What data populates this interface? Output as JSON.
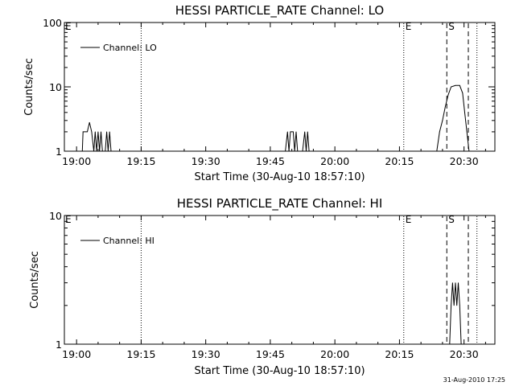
{
  "footer": {
    "timestamp": "31-Aug-2010 17:25"
  },
  "chart_data": [
    {
      "type": "line",
      "title": "HESSI PARTICLE_RATE Channel: LO",
      "xlabel": "Start Time (30-Aug-10 18:57:10)",
      "ylabel": "Counts/sec",
      "yscale": "log",
      "ylim": [
        1,
        100
      ],
      "xlim": [
        "18:57:10",
        "20:37:10"
      ],
      "x_tick_labels": [
        "19:00",
        "19:15",
        "19:30",
        "19:45",
        "20:00",
        "20:15",
        "20:30"
      ],
      "y_tick_labels": [
        "1",
        "10",
        "100"
      ],
      "legend": {
        "position": "top-left",
        "entries": [
          "Channel: LO"
        ]
      },
      "markers": [
        {
          "label": "",
          "time": "19:15",
          "style": "dotted"
        },
        {
          "label": "E",
          "time": "20:16",
          "style": "dotted"
        },
        {
          "label": "S",
          "time": "20:26",
          "style": "dashed"
        },
        {
          "label": "",
          "time": "20:31",
          "style": "dashed"
        },
        {
          "label": "",
          "time": "20:33",
          "style": "dotted"
        }
      ],
      "edge_marker": "E",
      "series": [
        {
          "name": "Channel: LO",
          "points": [
            [
              "19:01:20",
              1
            ],
            [
              "19:01:30",
              2
            ],
            [
              "19:02:30",
              2
            ],
            [
              "19:03:00",
              2.8
            ],
            [
              "19:03:30",
              2
            ],
            [
              "19:04:00",
              1
            ],
            [
              "19:04:20",
              2
            ],
            [
              "19:04:40",
              1
            ],
            [
              "19:05:00",
              2
            ],
            [
              "19:05:20",
              1
            ],
            [
              "19:05:40",
              2
            ],
            [
              "19:06:00",
              1
            ],
            [
              "19:06:40",
              1
            ],
            [
              "19:07:00",
              2
            ],
            [
              "19:07:20",
              1
            ],
            [
              "19:07:40",
              2
            ],
            [
              "19:08:00",
              1
            ],
            [
              "19:48:30",
              1
            ],
            [
              "19:49:00",
              2
            ],
            [
              "19:49:20",
              1
            ],
            [
              "19:49:40",
              2
            ],
            [
              "19:50:20",
              2
            ],
            [
              "19:50:40",
              1
            ],
            [
              "19:51:00",
              2
            ],
            [
              "19:51:20",
              1
            ],
            [
              "19:52:30",
              1
            ],
            [
              "19:53:00",
              2
            ],
            [
              "19:53:20",
              1
            ],
            [
              "19:53:40",
              2
            ],
            [
              "19:54:00",
              1
            ],
            [
              "20:23:40",
              1
            ],
            [
              "20:24:20",
              2
            ],
            [
              "20:25:00",
              3
            ],
            [
              "20:25:40",
              5
            ],
            [
              "20:26:20",
              7.5
            ],
            [
              "20:27:00",
              10
            ],
            [
              "20:28:00",
              10.5
            ],
            [
              "20:29:00",
              10.5
            ],
            [
              "20:29:40",
              8
            ],
            [
              "20:30:10",
              4
            ],
            [
              "20:30:40",
              2
            ],
            [
              "20:31:10",
              1
            ]
          ]
        }
      ]
    },
    {
      "type": "line",
      "title": "HESSI PARTICLE_RATE Channel: HI",
      "xlabel": "Start Time (30-Aug-10 18:57:10)",
      "ylabel": "Counts/sec",
      "yscale": "log",
      "ylim": [
        1,
        10
      ],
      "xlim": [
        "18:57:10",
        "20:37:10"
      ],
      "x_tick_labels": [
        "19:00",
        "19:15",
        "19:30",
        "19:45",
        "20:00",
        "20:15",
        "20:30"
      ],
      "y_tick_labels": [
        "1",
        "10"
      ],
      "legend": {
        "position": "top-left",
        "entries": [
          "Channel: HI"
        ]
      },
      "markers": [
        {
          "label": "",
          "time": "19:15",
          "style": "dotted"
        },
        {
          "label": "E",
          "time": "20:16",
          "style": "dotted"
        },
        {
          "label": "S",
          "time": "20:26",
          "style": "dashed"
        },
        {
          "label": "",
          "time": "20:31",
          "style": "dashed"
        },
        {
          "label": "",
          "time": "20:33",
          "style": "dotted"
        }
      ],
      "edge_marker": "E",
      "series": [
        {
          "name": "Channel: HI",
          "points": [
            [
              "20:26:40",
              1
            ],
            [
              "20:27:00",
              2
            ],
            [
              "20:27:20",
              3
            ],
            [
              "20:27:40",
              2
            ],
            [
              "20:28:00",
              3
            ],
            [
              "20:28:20",
              2
            ],
            [
              "20:28:40",
              3
            ],
            [
              "20:29:00",
              2
            ],
            [
              "20:29:20",
              1
            ]
          ]
        }
      ]
    }
  ]
}
